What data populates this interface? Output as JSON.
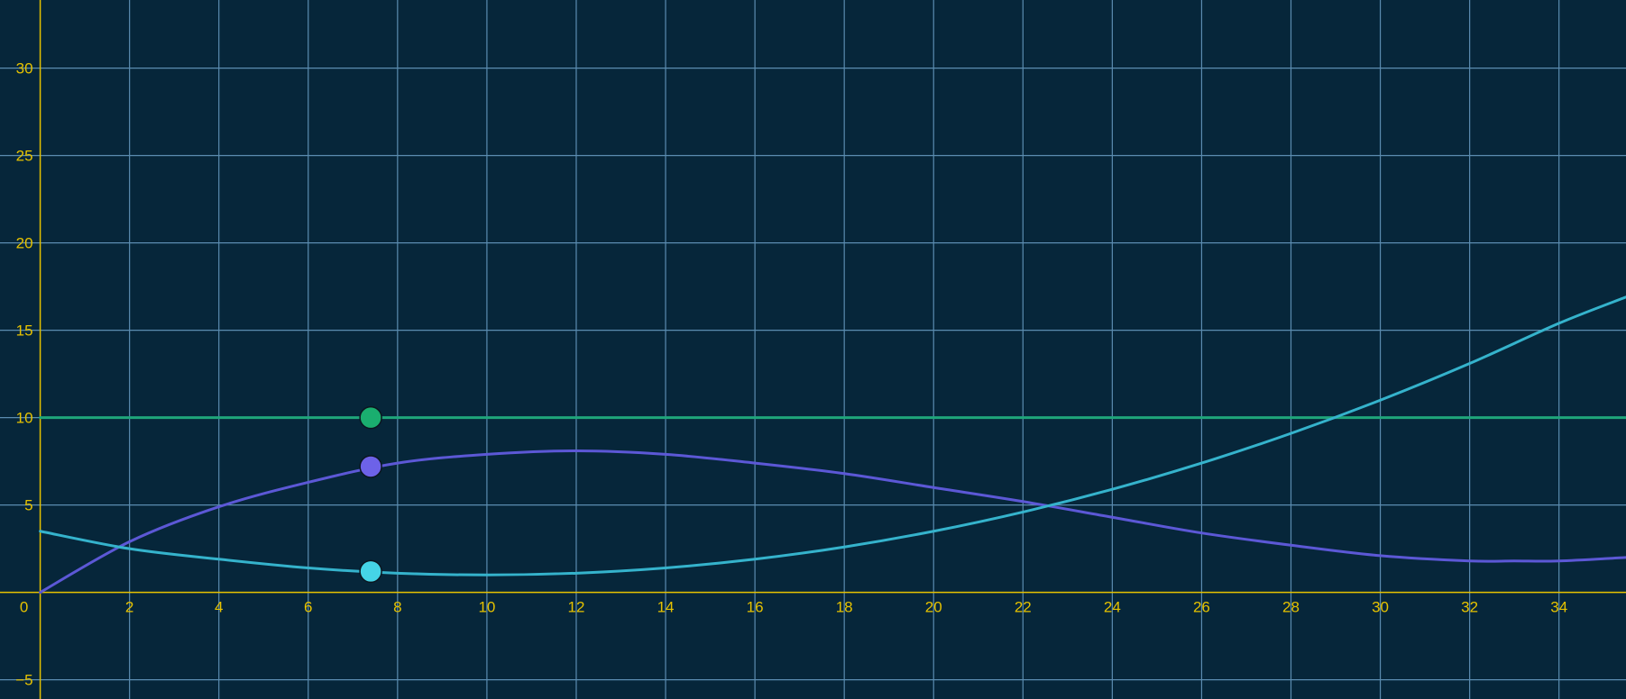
{
  "colors": {
    "background": "#06263a",
    "grid": "#5b8cb0",
    "axis": "#e6c200",
    "tick_text": "#e6c200",
    "horizontal_line": "#1fa67a",
    "purple_curve": "#5c58d6",
    "cyan_curve": "#35b3cc",
    "green_point": "#1aae6f",
    "purple_point": "#6d62e8",
    "cyan_point": "#45d4e6"
  },
  "chart_data": {
    "type": "line",
    "xlim": [
      -0.9,
      35.5
    ],
    "ylim": [
      -6.1,
      33.9
    ],
    "grid": true,
    "x_ticks": [
      0,
      2,
      4,
      6,
      8,
      10,
      12,
      14,
      16,
      18,
      20,
      22,
      24,
      26,
      28,
      30,
      32,
      34
    ],
    "y_ticks": [
      -5,
      5,
      10,
      15,
      20,
      25,
      30
    ],
    "x_tick_labels": [
      "0",
      "2",
      "4",
      "6",
      "8",
      "10",
      "12",
      "14",
      "16",
      "18",
      "20",
      "22",
      "24",
      "26",
      "28",
      "30",
      "32",
      "34"
    ],
    "y_tick_labels": [
      "−5",
      "5",
      "10",
      "15",
      "20",
      "25",
      "30"
    ],
    "series": [
      {
        "key": "horizontal_line",
        "x": [
          0,
          35.5
        ],
        "y": [
          10,
          10
        ]
      },
      {
        "key": "purple_curve",
        "x": [
          0,
          2,
          4,
          6,
          8,
          10,
          12,
          14,
          16,
          18,
          20,
          22,
          24,
          26,
          28,
          30,
          32,
          33,
          34,
          35.5
        ],
        "y": [
          0,
          2.9,
          4.9,
          6.3,
          7.4,
          7.9,
          8.1,
          7.9,
          7.4,
          6.8,
          6.0,
          5.2,
          4.3,
          3.4,
          2.7,
          2.1,
          1.8,
          1.8,
          1.8,
          2.0
        ]
      },
      {
        "key": "cyan_curve",
        "x": [
          0,
          2,
          4,
          6,
          8,
          10,
          12,
          14,
          16,
          18,
          20,
          22,
          24,
          26,
          28,
          30,
          32,
          34,
          35.5
        ],
        "y": [
          3.5,
          2.5,
          1.9,
          1.4,
          1.1,
          1.0,
          1.1,
          1.4,
          1.9,
          2.6,
          3.5,
          4.6,
          5.9,
          7.4,
          9.1,
          11.0,
          13.1,
          15.4,
          16.9
        ]
      }
    ],
    "points": [
      {
        "key": "green_point",
        "x": 7.4,
        "y": 10.0
      },
      {
        "key": "purple_point",
        "x": 7.4,
        "y": 7.2
      },
      {
        "key": "cyan_point",
        "x": 7.4,
        "y": 1.2
      }
    ]
  }
}
